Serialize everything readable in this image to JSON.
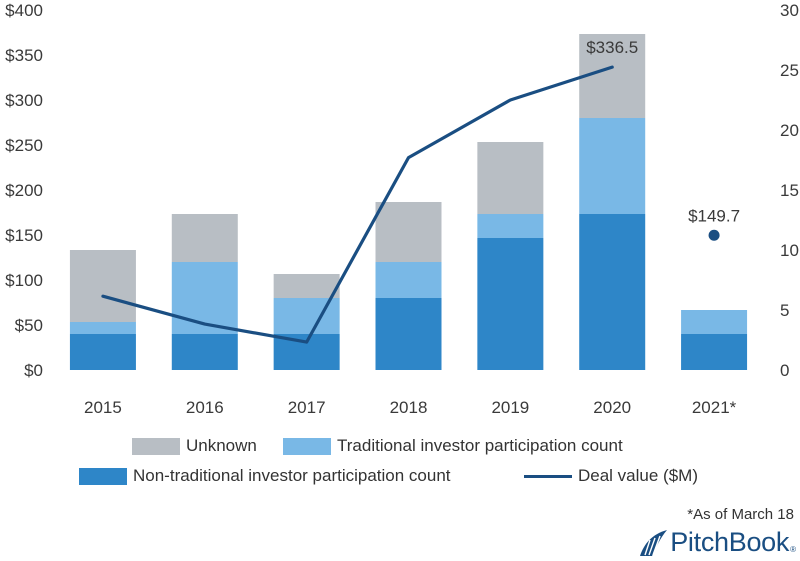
{
  "chart_data": {
    "type": "bar",
    "stacked": true,
    "categories": [
      "2015",
      "2016",
      "2017",
      "2018",
      "2019",
      "2020",
      "2021*"
    ],
    "series": [
      {
        "name": "Non-traditional investor participation count",
        "axis": "right",
        "color": "#2e86c8",
        "values": [
          3,
          3,
          3,
          6,
          11,
          13,
          3
        ]
      },
      {
        "name": "Traditional investor participation count",
        "axis": "right",
        "color": "#79b8e6",
        "values": [
          1,
          6,
          3,
          3,
          2,
          8,
          2
        ]
      },
      {
        "name": "Unknown",
        "axis": "right",
        "color": "#b8bec4",
        "values": [
          6,
          4,
          2,
          5,
          6,
          7,
          0
        ]
      },
      {
        "name": "Deal value ($M)",
        "type": "line",
        "axis": "left",
        "color": "#1a4e82",
        "values": [
          82,
          51,
          31,
          236,
          300,
          336.5,
          149.7
        ],
        "line_through": [
          "2015",
          "2016",
          "2017",
          "2018",
          "2019",
          "2020"
        ],
        "point_only": [
          "2021*"
        ]
      }
    ],
    "data_labels": [
      {
        "category": "2020",
        "text": "$336.5"
      },
      {
        "category": "2021*",
        "text": "$149.7"
      }
    ],
    "left_axis": {
      "ylim": [
        0,
        400
      ],
      "ticks": [
        "$0",
        "$50",
        "$100",
        "$150",
        "$200",
        "$250",
        "$300",
        "$350",
        "$400"
      ]
    },
    "right_axis": {
      "ylim": [
        0,
        30
      ],
      "ticks": [
        "0",
        "5",
        "10",
        "15",
        "20",
        "25",
        "30"
      ]
    },
    "grid": false,
    "legend_position": "bottom"
  },
  "legend": {
    "unknown": "Unknown",
    "traditional": "Traditional investor participation count",
    "nontraditional": "Non-traditional investor participation count",
    "deal_value": "Deal value ($M)"
  },
  "footnote": "*As of March 18",
  "brand": {
    "name": "PitchBook",
    "reg": "®"
  }
}
